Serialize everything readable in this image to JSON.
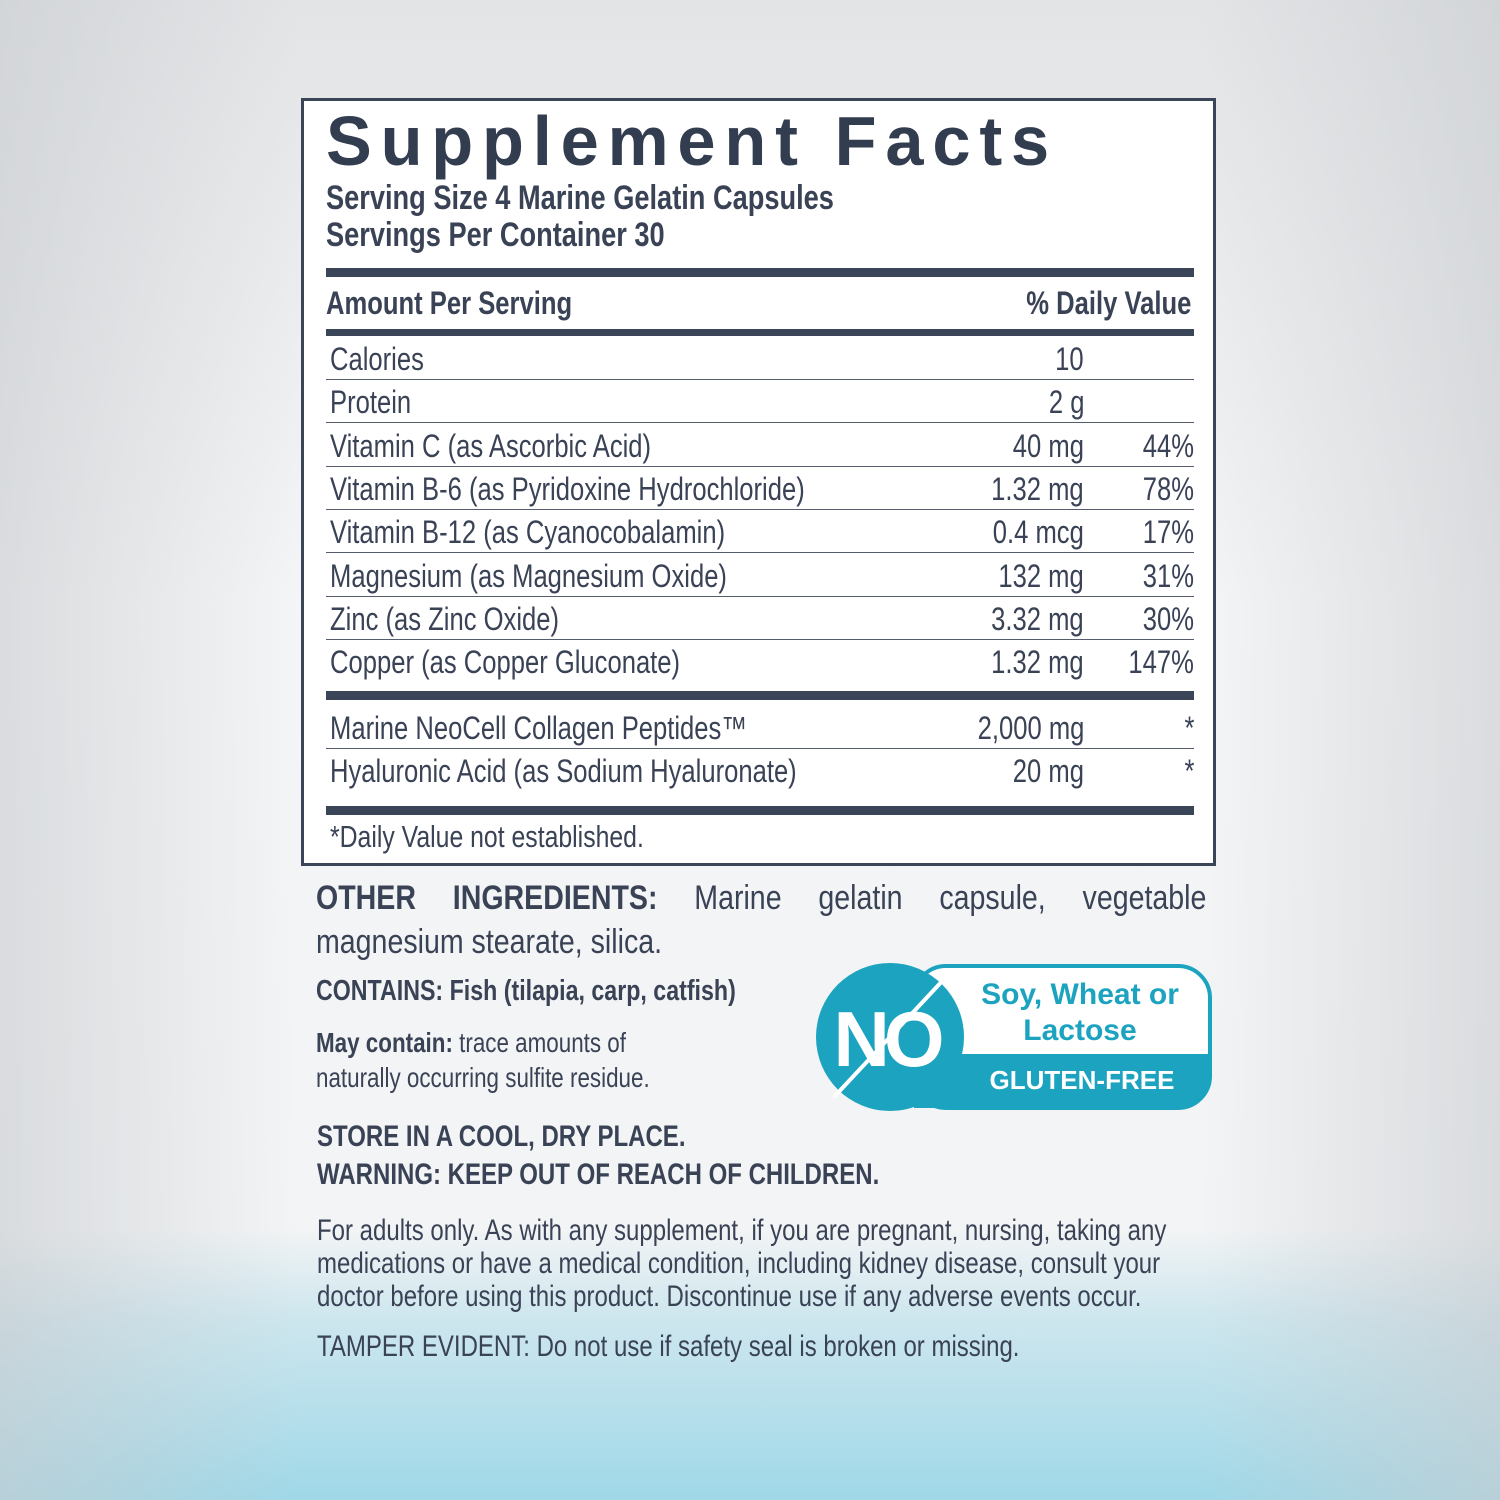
{
  "title": "Supplement Facts",
  "serving_size": "Serving Size 4 Marine Gelatin Capsules",
  "servings_per_container": "Servings Per Container 30",
  "header": {
    "amount": "Amount Per Serving",
    "dv": "% Daily Value"
  },
  "rows": [
    {
      "name": "Calories",
      "amount": "10",
      "dv": ""
    },
    {
      "name": "Protein",
      "amount": "2 g",
      "dv": ""
    },
    {
      "name": "Vitamin C (as Ascorbic Acid)",
      "amount": "40 mg",
      "dv": "44%"
    },
    {
      "name": "Vitamin B-6 (as Pyridoxine Hydrochloride)",
      "amount": "1.32 mg",
      "dv": "78%"
    },
    {
      "name": "Vitamin B-12 (as Cyanocobalamin)",
      "amount": "0.4 mcg",
      "dv": "17%"
    },
    {
      "name": "Magnesium (as Magnesium Oxide)",
      "amount": "132 mg",
      "dv": "31%"
    },
    {
      "name": "Zinc (as Zinc Oxide)",
      "amount": "3.32 mg",
      "dv": "30%"
    },
    {
      "name": "Copper (as Copper Gluconate)",
      "amount": "1.32 mg",
      "dv": "147%"
    }
  ],
  "rows2": [
    {
      "name": "Marine NeoCell Collagen Peptides™",
      "amount": "2,000 mg",
      "dv": "*"
    },
    {
      "name": "Hyaluronic Acid (as Sodium Hyaluronate)",
      "amount": "20 mg",
      "dv": "*"
    }
  ],
  "footnote": "*Daily Value not established.",
  "other_label": "OTHER INGREDIENTS:",
  "other_text": "Marine gelatin capsule, vegetable magnesium stearate, silica.",
  "contains": "CONTAINS: Fish (tilapia, carp, catfish)",
  "may_label": "May contain:",
  "may_text1": "trace amounts of",
  "may_text2": "naturally occurring sulfite residue.",
  "store": "STORE IN A COOL, DRY PLACE.",
  "warning": "WARNING: KEEP OUT OF REACH OF CHILDREN.",
  "adult1": "For adults only. As with any supplement, if you are pregnant, nursing, taking any",
  "adult2": "medications or have a medical condition, including kidney disease, consult your",
  "adult3": "doctor before using this product. Discontinue use if any adverse events occur.",
  "tamper": "TAMPER EVIDENT: Do not use if safety seal is broken or missing.",
  "badge": {
    "no": "NO",
    "line1": "Soy, Wheat or",
    "line2": "Lactose",
    "gluten": "GLUTEN-FREE",
    "color": "#1ba3bf"
  }
}
